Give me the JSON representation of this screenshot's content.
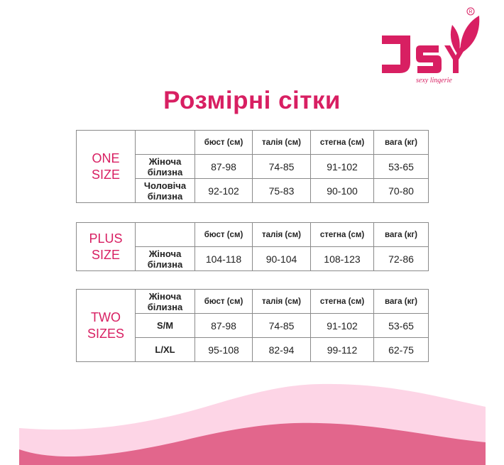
{
  "logo": {
    "text": "JSY",
    "tagline": "sexy lingerie",
    "registered": "®",
    "color": "#d81f62"
  },
  "title": "Розмірні сітки",
  "colors": {
    "accent": "#d81f62",
    "wave_light": "#fdd5e6",
    "wave_dark": "#e2668c",
    "border": "#8a8a8a"
  },
  "headers": [
    "бюст (см)",
    "талія (см)",
    "стегна (см)",
    "вага (кг)"
  ],
  "tables": [
    {
      "group": [
        "ONE",
        "SIZE"
      ],
      "corner": "",
      "rows": [
        {
          "label": [
            "Жіноча",
            "білизна"
          ],
          "values": [
            "87-98",
            "74-85",
            "91-102",
            "53-65"
          ]
        },
        {
          "label": [
            "Чоловіча",
            "білизна"
          ],
          "values": [
            "92-102",
            "75-83",
            "90-100",
            "70-80"
          ]
        }
      ]
    },
    {
      "group": [
        "PLUS",
        "SIZE"
      ],
      "corner": "",
      "rows": [
        {
          "label": [
            "Жіноча",
            "білизна"
          ],
          "values": [
            "104-118",
            "90-104",
            "108-123",
            "72-86"
          ]
        }
      ]
    },
    {
      "group": [
        "TWO",
        "SIZES"
      ],
      "corner": "Жіноча білизна",
      "rows": [
        {
          "label": [
            "S/M"
          ],
          "values": [
            "87-98",
            "74-85",
            "91-102",
            "53-65"
          ]
        },
        {
          "label": [
            "L/XL"
          ],
          "values": [
            "95-108",
            "82-94",
            "99-112",
            "62-75"
          ]
        }
      ]
    }
  ]
}
